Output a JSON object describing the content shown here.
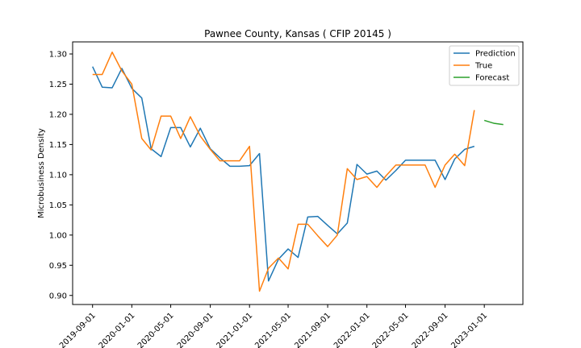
{
  "chart_data": {
    "type": "line",
    "title": "Pawnee County, Kansas ( CFIP 20145 )",
    "xlabel": "",
    "ylabel": "Microbusiness Density",
    "ylim": [
      0.885,
      1.32
    ],
    "yticks": [
      0.9,
      0.95,
      1.0,
      1.05,
      1.1,
      1.15,
      1.2,
      1.25,
      1.3
    ],
    "ytick_labels": [
      "0.90",
      "0.95",
      "1.00",
      "1.05",
      "1.10",
      "1.15",
      "1.20",
      "1.25",
      "1.30"
    ],
    "xlim": [
      "2019-07-01",
      "2023-05-01"
    ],
    "xticks": [
      "2019-09-01",
      "2020-01-01",
      "2020-05-01",
      "2020-09-01",
      "2021-01-01",
      "2021-05-01",
      "2021-09-01",
      "2022-01-01",
      "2022-05-01",
      "2022-09-01",
      "2023-01-01"
    ],
    "grid": false,
    "legend_position": "top-right",
    "series": [
      {
        "name": "Prediction",
        "color": "#1f77b4",
        "x": [
          "2019-09-01",
          "2019-10-01",
          "2019-11-01",
          "2019-12-01",
          "2020-01-01",
          "2020-02-01",
          "2020-03-01",
          "2020-04-01",
          "2020-05-01",
          "2020-06-01",
          "2020-07-01",
          "2020-08-01",
          "2020-09-01",
          "2020-10-01",
          "2020-11-01",
          "2020-12-01",
          "2021-01-01",
          "2021-02-01",
          "2021-03-01",
          "2021-04-01",
          "2021-05-01",
          "2021-06-01",
          "2021-07-01",
          "2021-08-01",
          "2021-09-01",
          "2021-10-01",
          "2021-11-01",
          "2021-12-01",
          "2022-01-01",
          "2022-02-01",
          "2022-03-01",
          "2022-04-01",
          "2022-05-01",
          "2022-06-01",
          "2022-07-01",
          "2022-08-01",
          "2022-09-01",
          "2022-10-01",
          "2022-11-01",
          "2022-12-01"
        ],
        "values": [
          1.279,
          1.245,
          1.244,
          1.276,
          1.243,
          1.227,
          1.143,
          1.13,
          1.178,
          1.178,
          1.146,
          1.177,
          1.143,
          1.128,
          1.114,
          1.114,
          1.115,
          1.135,
          0.924,
          0.96,
          0.977,
          0.963,
          1.03,
          1.031,
          1.016,
          1.002,
          1.02,
          1.117,
          1.101,
          1.106,
          1.091,
          1.107,
          1.124,
          1.124,
          1.124,
          1.124,
          1.092,
          1.126,
          1.142,
          1.147
        ]
      },
      {
        "name": "True",
        "color": "#ff7f0e",
        "x": [
          "2019-09-01",
          "2019-10-01",
          "2019-11-01",
          "2019-12-01",
          "2020-01-01",
          "2020-02-01",
          "2020-03-01",
          "2020-04-01",
          "2020-05-01",
          "2020-06-01",
          "2020-07-01",
          "2020-08-01",
          "2020-09-01",
          "2020-10-01",
          "2020-11-01",
          "2020-12-01",
          "2021-01-01",
          "2021-02-01",
          "2021-03-01",
          "2021-04-01",
          "2021-05-01",
          "2021-06-01",
          "2021-07-01",
          "2021-08-01",
          "2021-09-01",
          "2021-10-01",
          "2021-11-01",
          "2021-12-01",
          "2022-01-01",
          "2022-02-01",
          "2022-03-01",
          "2022-04-01",
          "2022-05-01",
          "2022-06-01",
          "2022-07-01",
          "2022-08-01",
          "2022-09-01",
          "2022-10-01",
          "2022-11-01",
          "2022-12-01"
        ],
        "values": [
          1.266,
          1.266,
          1.303,
          1.272,
          1.25,
          1.16,
          1.141,
          1.197,
          1.197,
          1.16,
          1.196,
          1.164,
          1.142,
          1.123,
          1.123,
          1.123,
          1.147,
          0.907,
          0.945,
          0.962,
          0.944,
          1.018,
          1.018,
          0.999,
          0.981,
          1.0,
          1.11,
          1.092,
          1.097,
          1.079,
          1.098,
          1.116,
          1.116,
          1.116,
          1.116,
          1.079,
          1.116,
          1.134,
          1.115,
          1.207
        ]
      },
      {
        "name": "Forecast",
        "color": "#2ca02c",
        "x": [
          "2023-01-01",
          "2023-02-01",
          "2023-03-01"
        ],
        "values": [
          1.19,
          1.185,
          1.183
        ]
      }
    ]
  }
}
